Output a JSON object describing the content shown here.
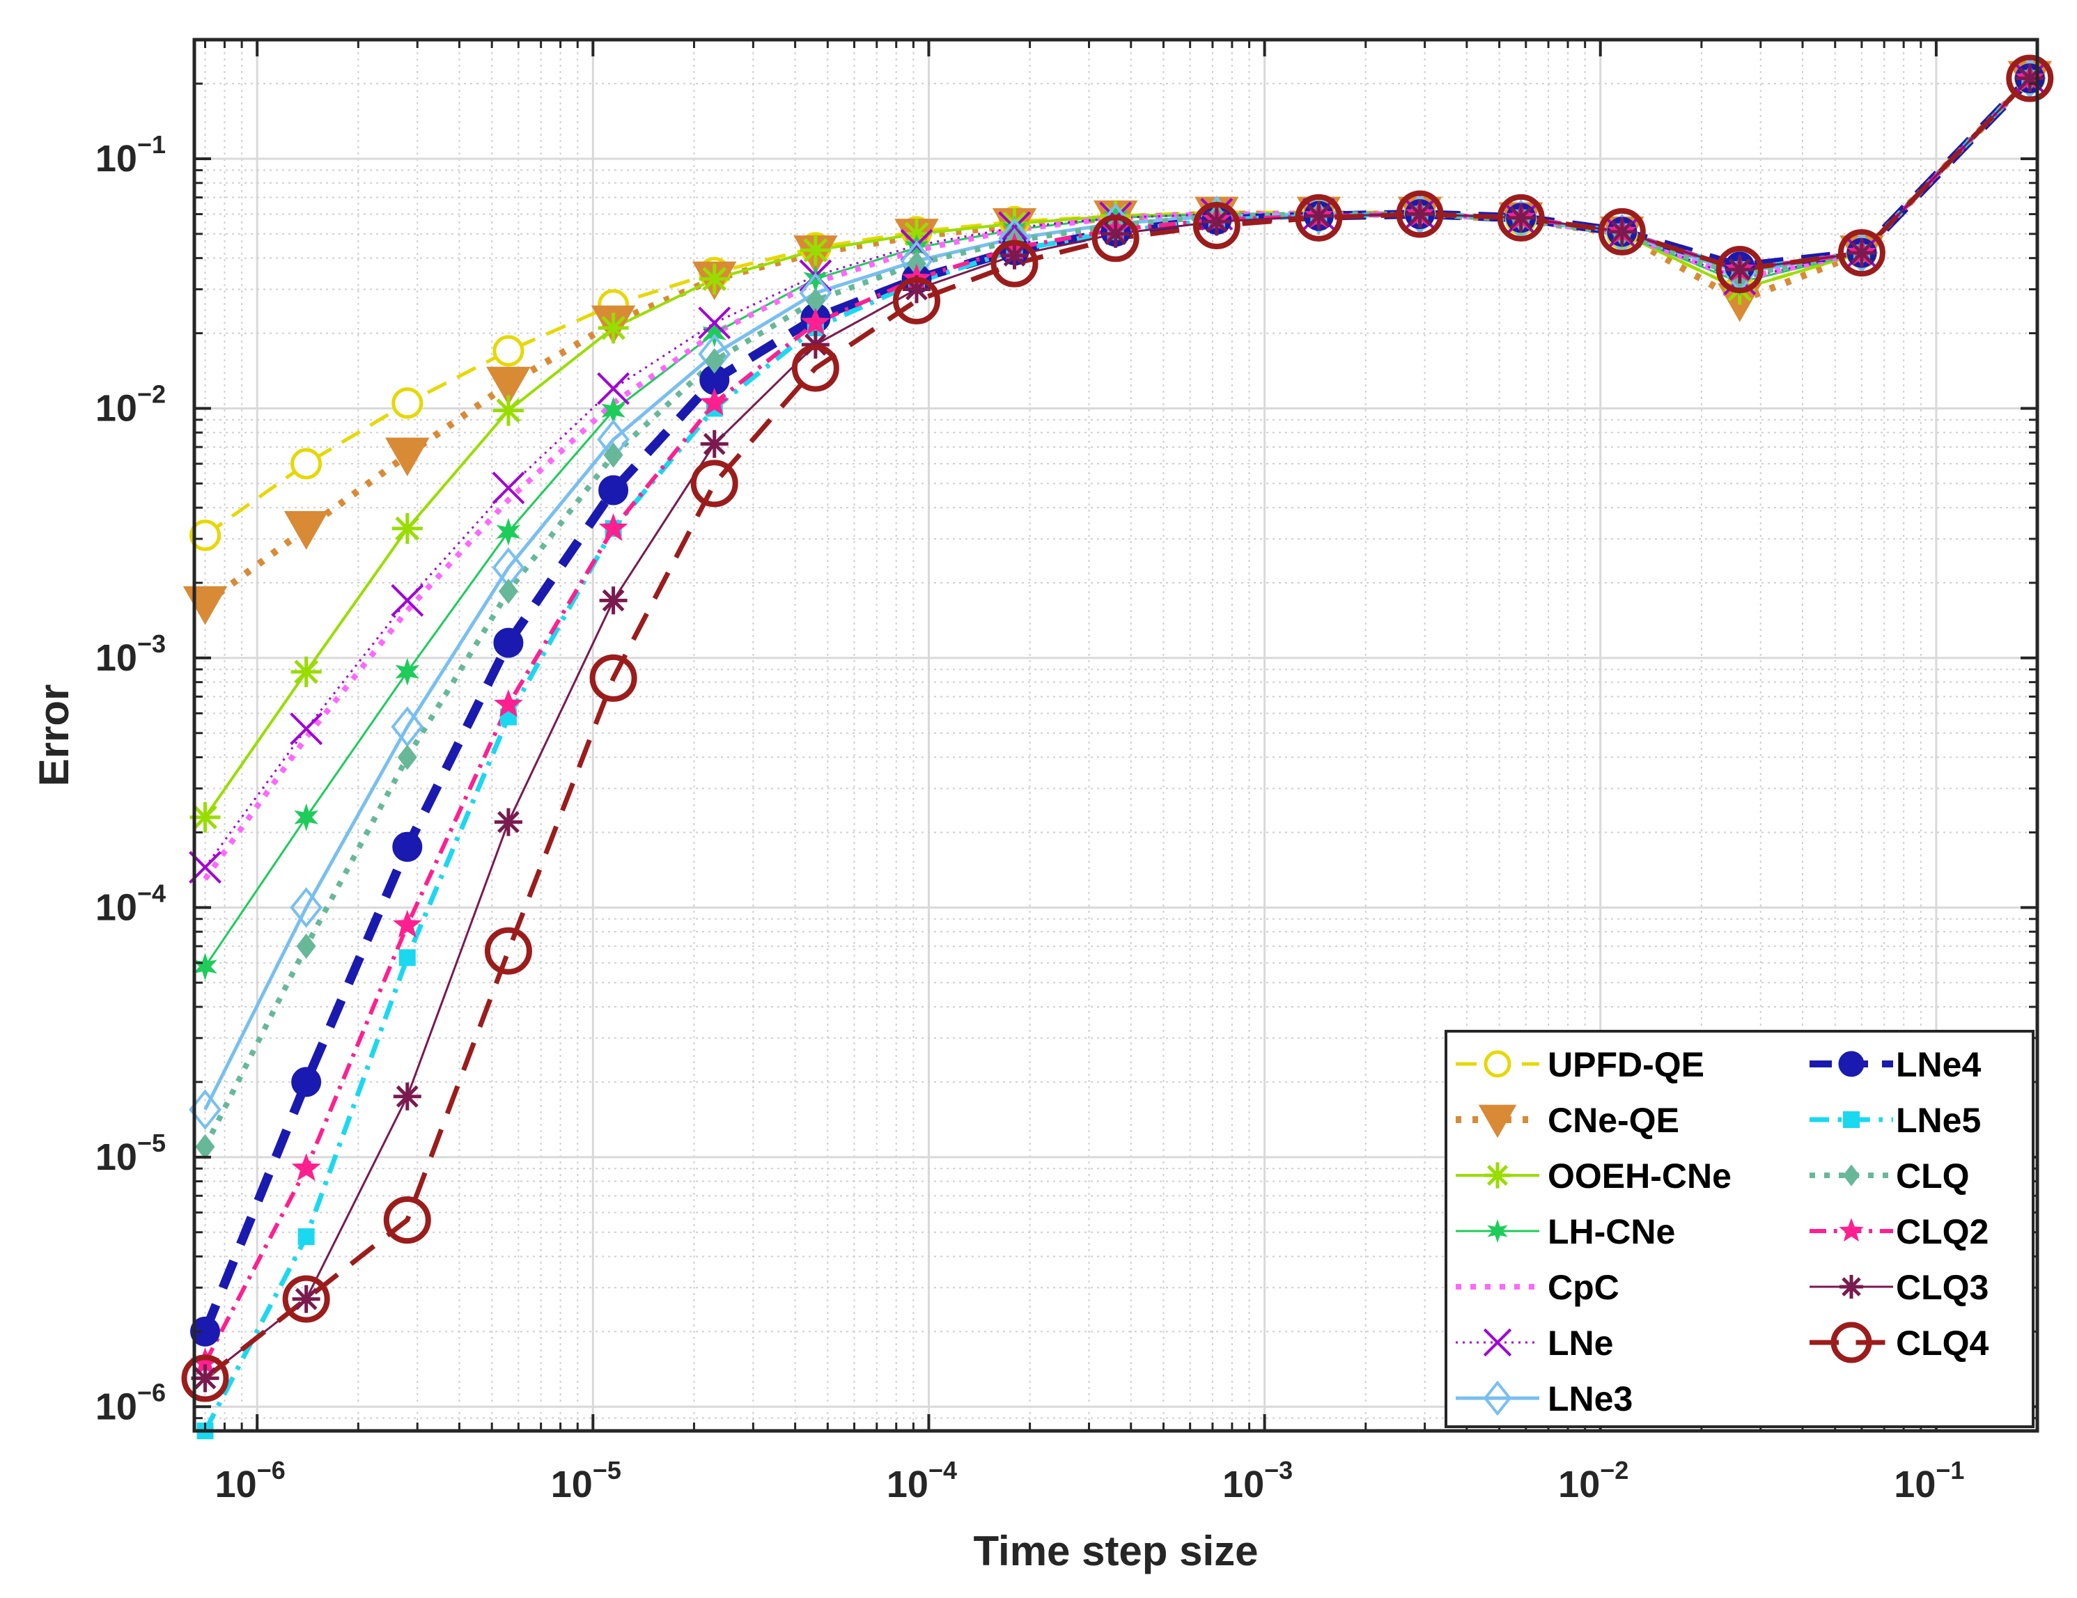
{
  "chart_data": {
    "type": "line",
    "xscale": "log",
    "yscale": "log",
    "xlabel": "Time step size",
    "ylabel": "Error",
    "xlim": [
      6.5e-07,
      0.2
    ],
    "ylim": [
      8e-07,
      0.3
    ],
    "grid": true,
    "minor_grid": true,
    "legend_position": "bottom-right",
    "x_ticks": [
      {
        "value": 1e-06,
        "mant": "10",
        "exp": "−6"
      },
      {
        "value": 1e-05,
        "mant": "10",
        "exp": "−5"
      },
      {
        "value": 0.0001,
        "mant": "10",
        "exp": "−4"
      },
      {
        "value": 0.001,
        "mant": "10",
        "exp": "−3"
      },
      {
        "value": 0.01,
        "mant": "10",
        "exp": "−2"
      },
      {
        "value": 0.1,
        "mant": "10",
        "exp": "−1"
      }
    ],
    "y_ticks": [
      {
        "value": 1e-06,
        "mant": "10",
        "exp": "−6"
      },
      {
        "value": 1e-05,
        "mant": "10",
        "exp": "−5"
      },
      {
        "value": 0.0001,
        "mant": "10",
        "exp": "−4"
      },
      {
        "value": 0.001,
        "mant": "10",
        "exp": "−3"
      },
      {
        "value": 0.01,
        "mant": "10",
        "exp": "−2"
      },
      {
        "value": 0.1,
        "mant": "10",
        "exp": "−1"
      }
    ],
    "x": [
      7e-07,
      1.4e-06,
      2.8e-06,
      5.6e-06,
      1.15e-05,
      2.3e-05,
      4.6e-05,
      9.2e-05,
      0.00018,
      0.00036,
      0.00072,
      0.00145,
      0.0029,
      0.0058,
      0.0116,
      0.026,
      0.06,
      0.19
    ],
    "series": [
      {
        "name": "UPFD-QE",
        "color": "#e6d800",
        "dash": "long",
        "width": 5,
        "marker": "circle-open",
        "markerSize": 20,
        "values": [
          0.0031,
          0.006,
          0.0105,
          0.017,
          0.026,
          0.035,
          0.044,
          0.051,
          0.056,
          0.059,
          0.061,
          0.061,
          0.061,
          0.057,
          0.05,
          0.03,
          0.042,
          0.21
        ]
      },
      {
        "name": "CNe-QE",
        "color": "#d98a35",
        "dash": "dot",
        "width": 10,
        "marker": "triangle-down-filled",
        "markerSize": 30,
        "values": [
          0.00165,
          0.0033,
          0.0065,
          0.0125,
          0.022,
          0.033,
          0.042,
          0.049,
          0.054,
          0.058,
          0.06,
          0.06,
          0.06,
          0.057,
          0.05,
          0.027,
          0.042,
          0.21
        ]
      },
      {
        "name": "OOEH-CNe",
        "color": "#99dd00",
        "dash": "solid",
        "width": 4,
        "marker": "asterisk",
        "markerSize": 22,
        "values": [
          0.00023,
          0.00088,
          0.0033,
          0.0098,
          0.021,
          0.033,
          0.043,
          0.05,
          0.055,
          0.059,
          0.06,
          0.06,
          0.06,
          0.057,
          0.05,
          0.03,
          0.042,
          0.21
        ]
      },
      {
        "name": "LH-CNe",
        "color": "#1ecc5a",
        "dash": "solid",
        "width": 3,
        "marker": "star6",
        "markerSize": 20,
        "values": [
          5.8e-05,
          0.00023,
          0.00088,
          0.0032,
          0.0098,
          0.02,
          0.033,
          0.044,
          0.052,
          0.058,
          0.06,
          0.06,
          0.06,
          0.057,
          0.05,
          0.032,
          0.042,
          0.21
        ]
      },
      {
        "name": "CpC",
        "color": "#ff66ff",
        "dash": "dot",
        "width": 8,
        "marker": "none",
        "markerSize": 0,
        "values": [
          0.00013,
          0.00048,
          0.00155,
          0.0043,
          0.0105,
          0.02,
          0.032,
          0.043,
          0.052,
          0.058,
          0.06,
          0.06,
          0.06,
          0.057,
          0.05,
          0.033,
          0.042,
          0.21
        ]
      },
      {
        "name": "LNe",
        "color": "#a000d8",
        "dash": "fine-dot",
        "width": 3,
        "marker": "x",
        "markerSize": 22,
        "values": [
          0.000145,
          0.00052,
          0.0017,
          0.0048,
          0.012,
          0.022,
          0.034,
          0.045,
          0.053,
          0.058,
          0.06,
          0.06,
          0.06,
          0.057,
          0.05,
          0.033,
          0.042,
          0.21
        ]
      },
      {
        "name": "LNe3",
        "color": "#78bff0",
        "dash": "solid",
        "width": 5,
        "marker": "diamond-open",
        "markerSize": 26,
        "values": [
          1.55e-05,
          0.0001,
          0.00053,
          0.0023,
          0.0075,
          0.0165,
          0.029,
          0.039,
          0.048,
          0.055,
          0.059,
          0.06,
          0.06,
          0.057,
          0.05,
          0.035,
          0.042,
          0.21
        ]
      },
      {
        "name": "LNe4",
        "color": "#1a1ab0",
        "dash": "heavy-dash",
        "width": 13,
        "marker": "circle-filled",
        "markerSize": 20,
        "values": [
          2e-06,
          2e-05,
          0.000175,
          0.00115,
          0.0047,
          0.013,
          0.023,
          0.033,
          0.043,
          0.051,
          0.057,
          0.059,
          0.06,
          0.058,
          0.051,
          0.037,
          0.042,
          0.21
        ]
      },
      {
        "name": "LNe5",
        "color": "#1ad8f0",
        "dash": "dashdot",
        "width": 7,
        "marker": "square-filled",
        "markerSize": 12,
        "values": [
          8e-07,
          4.8e-06,
          6.3e-05,
          0.00058,
          0.0033,
          0.01,
          0.021,
          0.032,
          0.043,
          0.051,
          0.057,
          0.059,
          0.06,
          0.058,
          0.051,
          0.036,
          0.042,
          0.21
        ]
      },
      {
        "name": "CLQ",
        "color": "#66b899",
        "dash": "dot",
        "width": 8,
        "marker": "diamond-filled",
        "markerSize": 14,
        "values": [
          1.1e-05,
          7e-05,
          0.0004,
          0.00185,
          0.0065,
          0.0155,
          0.027,
          0.038,
          0.047,
          0.054,
          0.059,
          0.06,
          0.06,
          0.057,
          0.05,
          0.034,
          0.042,
          0.21
        ]
      },
      {
        "name": "CLQ2",
        "color": "#ff1f8f",
        "dash": "dashdot",
        "width": 6,
        "marker": "star5",
        "markerSize": 22,
        "values": [
          1.5e-06,
          9e-06,
          8.5e-05,
          0.00065,
          0.0033,
          0.0105,
          0.022,
          0.033,
          0.044,
          0.052,
          0.057,
          0.059,
          0.06,
          0.058,
          0.051,
          0.036,
          0.042,
          0.21
        ]
      },
      {
        "name": "CLQ3",
        "color": "#7a1a4f",
        "dash": "solid",
        "width": 3,
        "marker": "asterisk",
        "markerSize": 20,
        "values": [
          1.3e-06,
          2.7e-06,
          1.75e-05,
          0.00022,
          0.0017,
          0.0072,
          0.018,
          0.03,
          0.041,
          0.05,
          0.056,
          0.059,
          0.06,
          0.058,
          0.051,
          0.036,
          0.042,
          0.21
        ]
      },
      {
        "name": "CLQ4",
        "color": "#9c1c1c",
        "dash": "long",
        "width": 7,
        "marker": "circle-open-thick",
        "markerSize": 30,
        "values": [
          1.3e-06,
          2.7e-06,
          5.6e-06,
          6.7e-05,
          0.00083,
          0.005,
          0.0145,
          0.027,
          0.038,
          0.048,
          0.054,
          0.058,
          0.06,
          0.058,
          0.051,
          0.036,
          0.042,
          0.21
        ]
      }
    ]
  }
}
